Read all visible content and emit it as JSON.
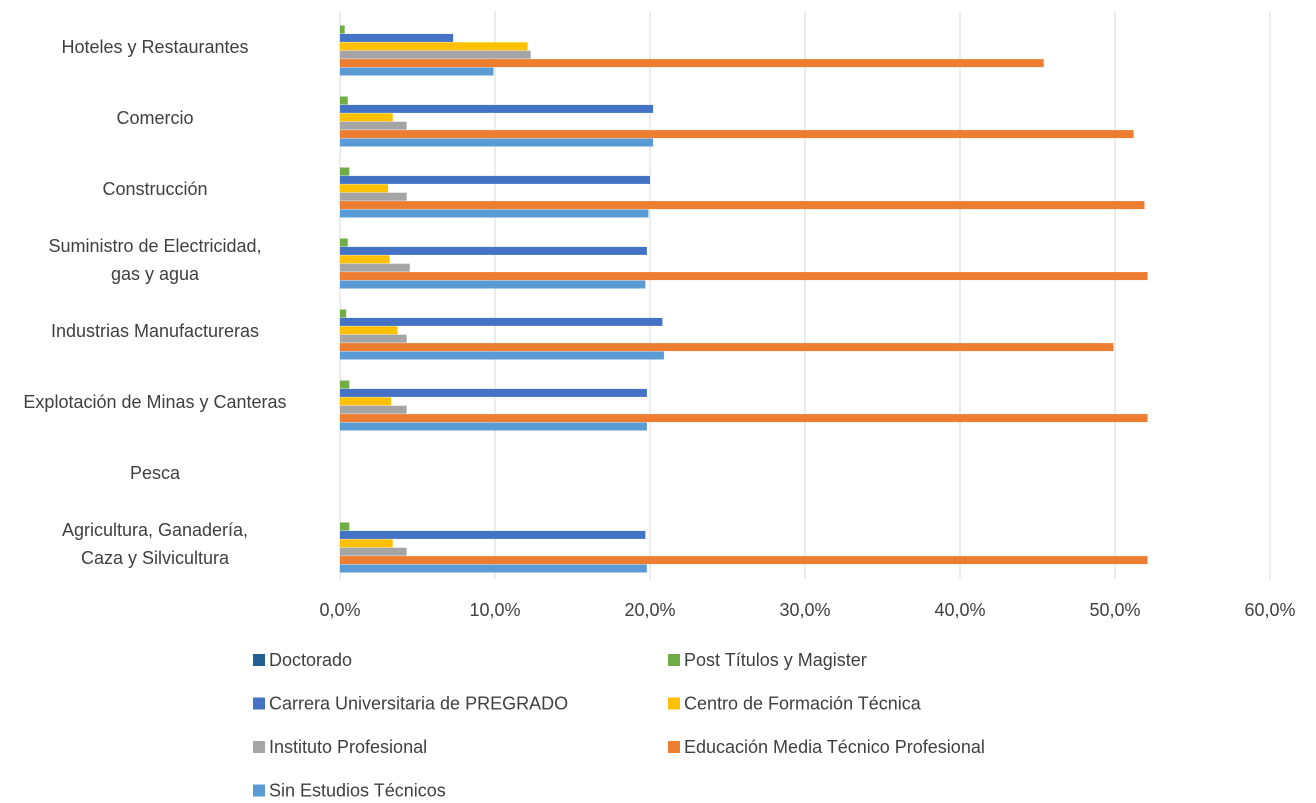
{
  "chart_data": {
    "type": "bar",
    "orientation": "horizontal",
    "categories": [
      "Hoteles y Restaurantes",
      "Comercio",
      "Construcción",
      "Suministro de Electricidad,\ngas y agua",
      "Industrias Manufactureras",
      "Explotación de Minas y Canteras",
      "Pesca",
      "Agricultura, Ganadería,\nCaza y Silvicultura"
    ],
    "series": [
      {
        "name": "Doctorado",
        "color": "#255e91",
        "values": [
          0,
          0,
          0,
          0,
          0,
          0,
          0,
          0
        ]
      },
      {
        "name": "Post Títulos y Magister",
        "color": "#70ad47",
        "values": [
          0.3,
          0.5,
          0.6,
          0.5,
          0.4,
          0.6,
          0,
          0.6
        ]
      },
      {
        "name": "Carrera Universitaria de PREGRADO",
        "color": "#4472c4",
        "values": [
          7.3,
          20.2,
          20.0,
          19.8,
          20.8,
          19.8,
          0,
          19.7
        ]
      },
      {
        "name": "Centro de Formación Técnica",
        "color": "#ffc000",
        "values": [
          12.1,
          3.4,
          3.1,
          3.2,
          3.7,
          3.3,
          0,
          3.4
        ]
      },
      {
        "name": "Instituto Profesional",
        "color": "#a5a5a5",
        "values": [
          12.3,
          4.3,
          4.3,
          4.5,
          4.3,
          4.3,
          0,
          4.3
        ]
      },
      {
        "name": "Educación Media Técnico Profesional",
        "color": "#ed7d31",
        "values": [
          45.4,
          51.2,
          51.9,
          52.1,
          49.9,
          52.1,
          0,
          52.1
        ]
      },
      {
        "name": "Sin Estudios Técnicos",
        "color": "#5b9bd5",
        "values": [
          9.9,
          20.2,
          19.9,
          19.7,
          20.9,
          19.8,
          0,
          19.8
        ]
      }
    ],
    "xlim": [
      0,
      60
    ],
    "xticks": [
      {
        "value": 0,
        "label": "0,0%"
      },
      {
        "value": 10,
        "label": "10,0%"
      },
      {
        "value": 20,
        "label": "20,0%"
      },
      {
        "value": 30,
        "label": "30,0%"
      },
      {
        "value": 40,
        "label": "40,0%"
      },
      {
        "value": 50,
        "label": "50,0%"
      },
      {
        "value": 60,
        "label": "60,0%"
      }
    ],
    "grid": true,
    "legend": "bottom"
  }
}
